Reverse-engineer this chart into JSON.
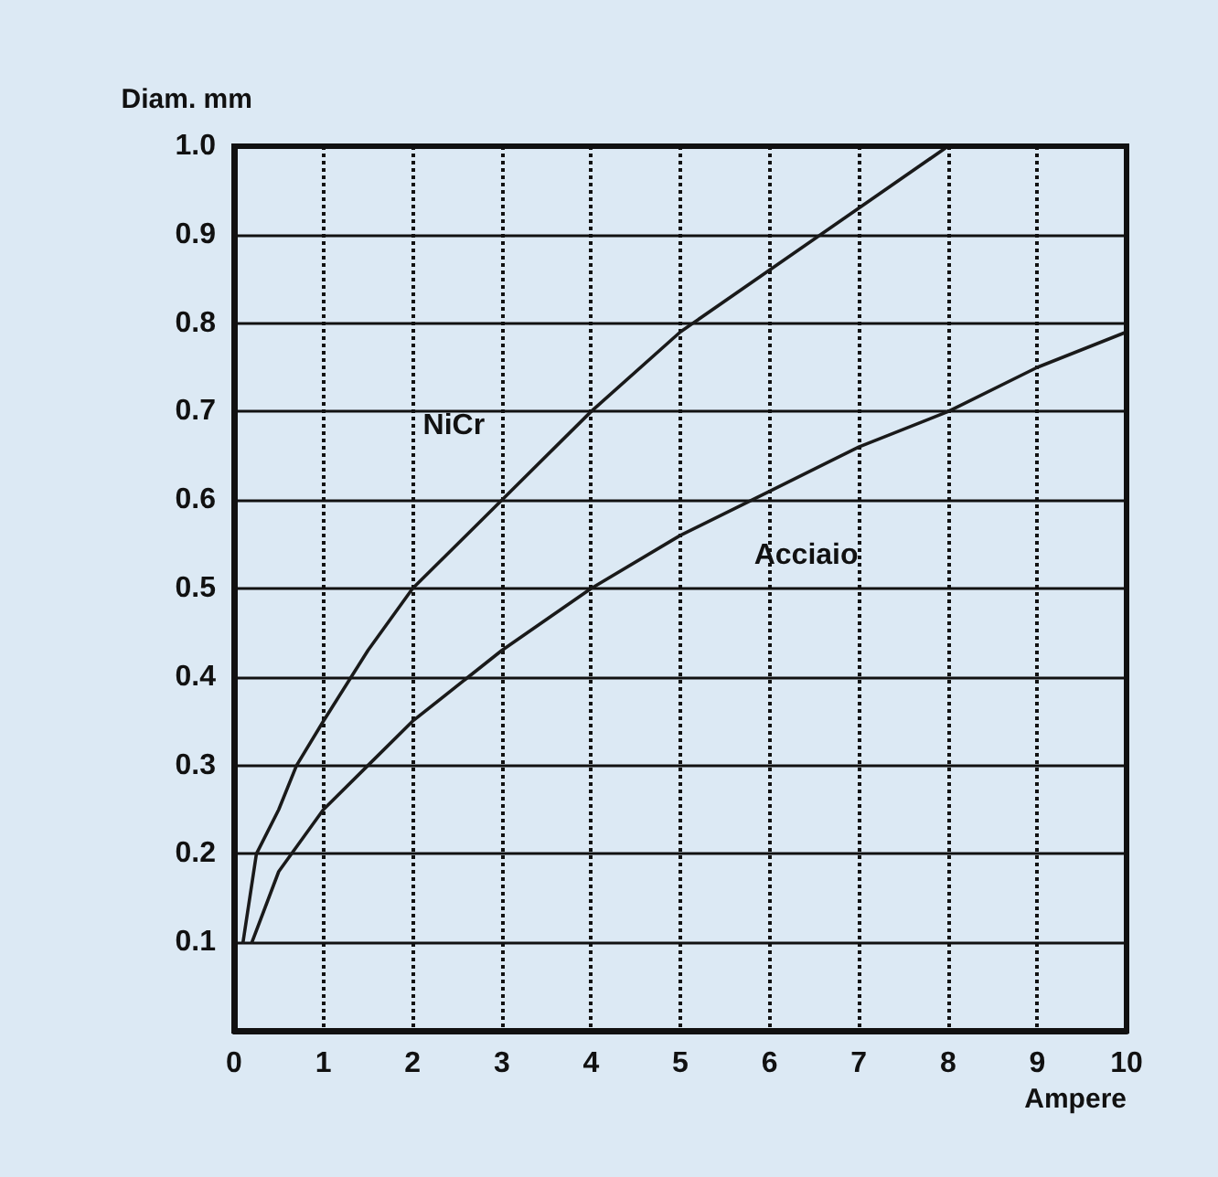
{
  "chart_data": {
    "type": "line",
    "xlabel": "Ampere",
    "ylabel": "Diam. mm",
    "xlim": [
      0,
      10
    ],
    "xticks": [
      0,
      1,
      2,
      3,
      4,
      5,
      6,
      7,
      8,
      9,
      10
    ],
    "ylim": [
      0,
      1.0
    ],
    "yticks": [
      0.1,
      0.2,
      0.3,
      0.4,
      0.5,
      0.6,
      0.7,
      0.8,
      0.9,
      {
        "value": 1.0,
        "label": "1.0"
      }
    ],
    "grid": true,
    "legend": false,
    "marker": "none",
    "line_style": "solid",
    "series": [
      {
        "name": "NiCr",
        "color": "#1a1a1a",
        "x": [
          0.1,
          0.25,
          0.5,
          0.7,
          1,
          1.5,
          2,
          3,
          4,
          5,
          6,
          7,
          8
        ],
        "values": [
          0.1,
          0.2,
          0.25,
          0.3,
          0.35,
          0.43,
          0.5,
          0.6,
          0.7,
          0.79,
          0.86,
          0.93,
          1.0
        ]
      },
      {
        "name": "Acciaio",
        "color": "#1a1a1a",
        "x": [
          0.2,
          0.5,
          1,
          1.5,
          2,
          3,
          4,
          5,
          6,
          7,
          8,
          9,
          10
        ],
        "values": [
          0.1,
          0.18,
          0.25,
          0.3,
          0.35,
          0.43,
          0.5,
          0.56,
          0.61,
          0.66,
          0.7,
          0.75,
          0.79
        ]
      }
    ]
  }
}
